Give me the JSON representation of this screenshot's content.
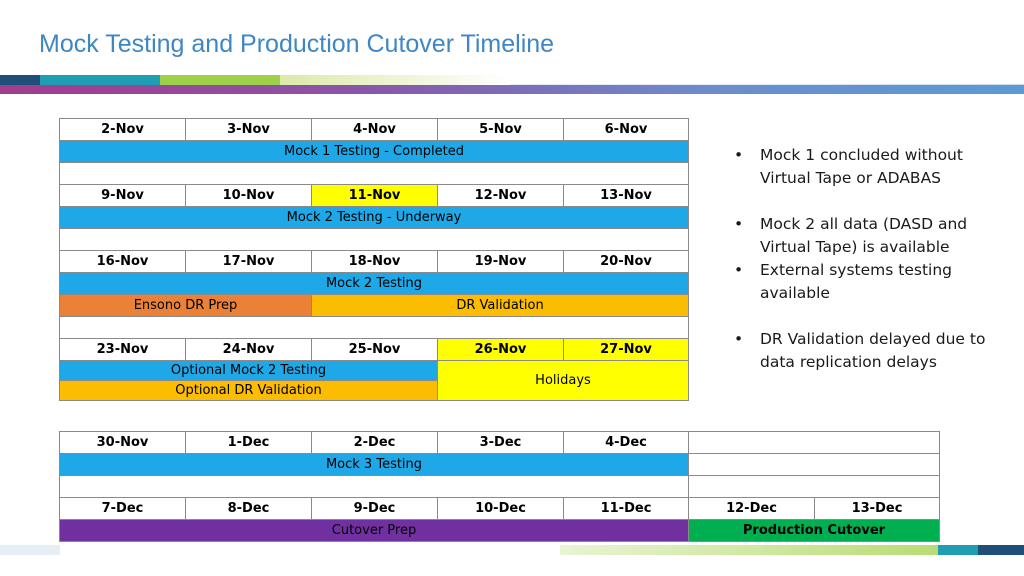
{
  "title": "Mock Testing and Production Cutover Timeline",
  "colors": {
    "title": "#3f86c4",
    "blue": "#1ea8e8",
    "orange": "#ea8136",
    "amber": "#fcbc00",
    "yellow": "#ffff00",
    "purple": "#7030a0",
    "green": "#00b050",
    "stripe_lime": "#9dd14a",
    "stripe_navy": "#1f4e79"
  },
  "week1": {
    "dates": [
      "2-Nov",
      "3-Nov",
      "4-Nov",
      "5-Nov",
      "6-Nov"
    ],
    "activity": "Mock 1 Testing - Completed"
  },
  "week2": {
    "dates": [
      "9-Nov",
      "10-Nov",
      "11-Nov",
      "12-Nov",
      "13-Nov"
    ],
    "activity": "Mock 2 Testing - Underway"
  },
  "week3": {
    "dates": [
      "16-Nov",
      "17-Nov",
      "18-Nov",
      "19-Nov",
      "20-Nov"
    ],
    "activity": "Mock 2 Testing",
    "prep": "Ensono DR Prep",
    "validation": "DR Validation"
  },
  "week4": {
    "dates": [
      "23-Nov",
      "24-Nov",
      "25-Nov",
      "26-Nov",
      "27-Nov"
    ],
    "optional_mock": "Optional Mock 2 Testing",
    "optional_dr": "Optional DR Validation",
    "holidays": "Holidays"
  },
  "week5": {
    "dates": [
      "30-Nov",
      "1-Dec",
      "2-Dec",
      "3-Dec",
      "4-Dec"
    ],
    "activity": "Mock 3 Testing"
  },
  "week6": {
    "dates": [
      "7-Dec",
      "8-Dec",
      "9-Dec",
      "10-Dec",
      "11-Dec",
      "12-Dec",
      "13-Dec"
    ],
    "cutover_prep": "Cutover Prep",
    "production_cutover": "Production Cutover"
  },
  "notes": [
    "Mock 1 concluded without Virtual Tape or ADABAS",
    "Mock 2 all data (DASD and Virtual Tape) is available",
    "External systems testing available",
    "DR Validation delayed due to data replication delays"
  ]
}
